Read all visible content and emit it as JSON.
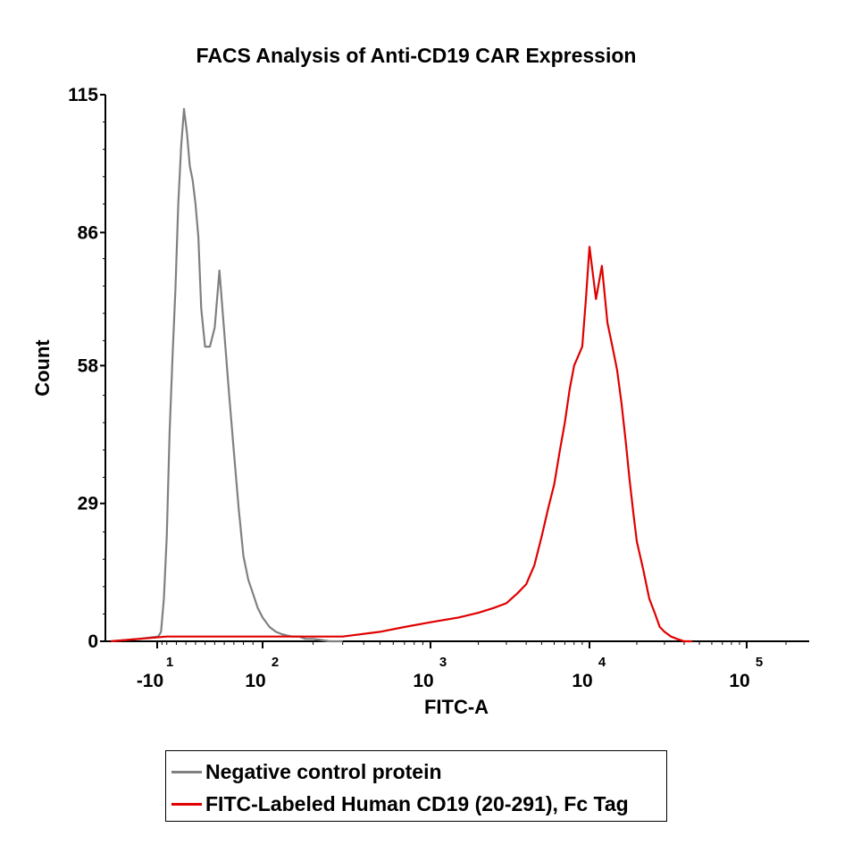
{
  "chart_data": {
    "type": "line",
    "title": "FACS Analysis of Anti-CD19 CAR Expression",
    "xlabel": "FITC-A",
    "ylabel": "Count",
    "x_scale": "biexponential",
    "xlim": [
      -15,
      200000
    ],
    "ylim": [
      0,
      115
    ],
    "yticks": [
      0,
      29,
      58,
      86,
      115
    ],
    "xticks": [
      {
        "value": -10,
        "label": "-10",
        "exp": "1"
      },
      {
        "value": 100,
        "label": "10",
        "exp": "2"
      },
      {
        "value": 1000,
        "label": "10",
        "exp": "3"
      },
      {
        "value": 10000,
        "label": "10",
        "exp": "4"
      },
      {
        "value": 100000,
        "label": "10",
        "exp": "5"
      }
    ],
    "legend_position": "bottom",
    "series": [
      {
        "name": "Negative control protein",
        "color": "#808080",
        "x": [
          -15,
          -12,
          -9,
          -6,
          -3,
          0,
          3,
          6,
          9,
          12,
          15,
          18,
          21,
          24,
          27,
          30,
          33,
          36,
          40,
          45,
          50,
          55,
          60,
          65,
          70,
          75,
          80,
          85,
          90,
          95,
          100,
          110,
          120,
          130,
          140,
          150,
          165,
          180,
          200,
          220,
          250,
          300
        ],
        "values": [
          0,
          0.5,
          1,
          2,
          9,
          22,
          44,
          60,
          74,
          92,
          104,
          112,
          107,
          100,
          97,
          92,
          85,
          70,
          62,
          62,
          66,
          78,
          65,
          52,
          40,
          28,
          18,
          13,
          10,
          7,
          5,
          3,
          2,
          1.5,
          1.2,
          1,
          1,
          0.5,
          0.5,
          0.3,
          0,
          0
        ]
      },
      {
        "name": "FITC-Labeled Human CD19 (20-291), Fc Tag",
        "color": "#e00000",
        "x": [
          -15,
          0,
          50,
          100,
          200,
          300,
          500,
          700,
          1000,
          1500,
          2000,
          2500,
          3000,
          3500,
          4000,
          4500,
          5000,
          5500,
          6000,
          6500,
          7000,
          7500,
          8000,
          8500,
          9000,
          9500,
          10000,
          11000,
          12000,
          13000,
          14000,
          15000,
          16000,
          17000,
          18000,
          19000,
          20000,
          22000,
          24000,
          26000,
          28000,
          30000,
          33000,
          36000,
          40000,
          45000
        ],
        "values": [
          0,
          1,
          1,
          1,
          1,
          1,
          2,
          3,
          4,
          5,
          6,
          7,
          8,
          10,
          12,
          16,
          22,
          28,
          33,
          40,
          46,
          53,
          58,
          60,
          62,
          72,
          83,
          72,
          79,
          67,
          62,
          57,
          50,
          42,
          34,
          27,
          21,
          15,
          9,
          6,
          3,
          2,
          1,
          0.5,
          0,
          0
        ]
      }
    ]
  }
}
